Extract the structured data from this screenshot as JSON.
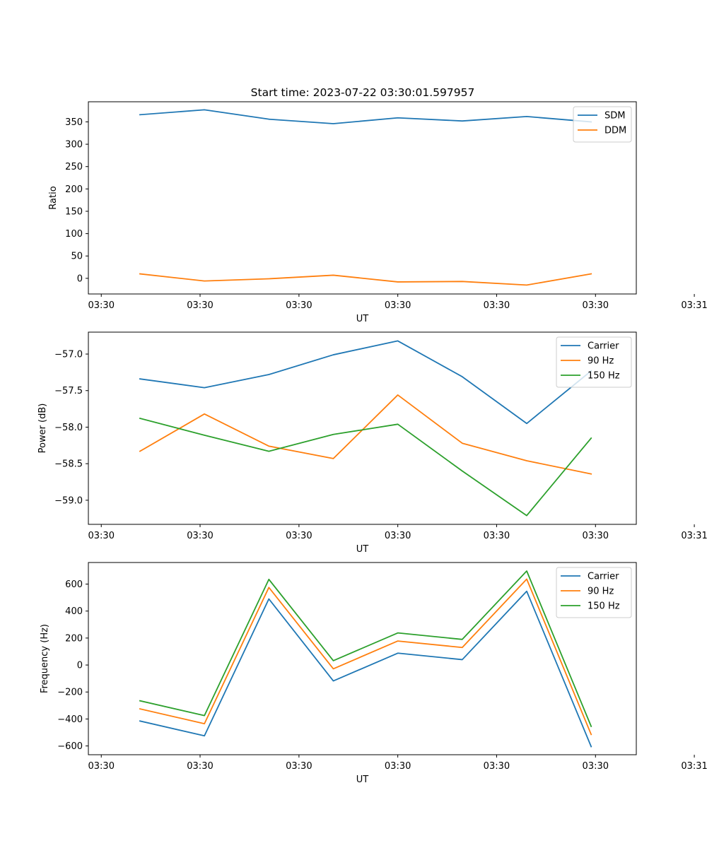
{
  "figure_title": "Start time: 2023-07-22 03:30:01.597957",
  "chart_data": [
    {
      "type": "line",
      "title": "Start time: 2023-07-22 03:30:01.597957",
      "xlabel": "UT",
      "ylabel": "Ratio",
      "x": [
        1,
        2,
        3,
        4,
        5,
        6,
        7,
        8
      ],
      "xlim": [
        0.2,
        8.7
      ],
      "xticks": [
        0.4,
        1.933,
        3.467,
        5.0,
        6.533,
        8.067,
        9.6
      ],
      "xtick_labels": [
        "03:30",
        "03:30",
        "03:30",
        "03:30",
        "03:30",
        "03:30",
        "03:31"
      ],
      "ylim": [
        -35,
        395
      ],
      "yticks": [
        0,
        50,
        100,
        150,
        200,
        250,
        300,
        350
      ],
      "ytick_labels": [
        "0",
        "50",
        "100",
        "150",
        "200",
        "250",
        "300",
        "350"
      ],
      "legend_position": "top-right",
      "grid": false,
      "series": [
        {
          "name": "SDM",
          "color": "#1f77b4",
          "values": [
            366,
            377,
            356,
            346,
            359,
            352,
            362,
            350
          ]
        },
        {
          "name": "DDM",
          "color": "#ff7f0e",
          "values": [
            10,
            -6,
            -1,
            7,
            -8,
            -7,
            -15,
            10
          ]
        }
      ]
    },
    {
      "type": "line",
      "title": "",
      "xlabel": "UT",
      "ylabel": "Power (dB)",
      "x": [
        1,
        2,
        3,
        4,
        5,
        6,
        7,
        8
      ],
      "xlim": [
        0.2,
        8.7
      ],
      "xticks": [
        0.4,
        1.933,
        3.467,
        5.0,
        6.533,
        8.067,
        9.6
      ],
      "xtick_labels": [
        "03:30",
        "03:30",
        "03:30",
        "03:30",
        "03:30",
        "03:30",
        "03:31"
      ],
      "ylim": [
        -59.33,
        -56.7
      ],
      "yticks": [
        -59.0,
        -58.5,
        -58.0,
        -57.5,
        -57.0
      ],
      "ytick_labels": [
        "−59.0",
        "−58.5",
        "−58.0",
        "−57.5",
        "−57.0"
      ],
      "legend_position": "top-right",
      "grid": false,
      "series": [
        {
          "name": "Carrier",
          "color": "#1f77b4",
          "values": [
            -57.34,
            -57.46,
            -57.28,
            -57.01,
            -56.82,
            -57.31,
            -57.95,
            -57.23
          ]
        },
        {
          "name": "90 Hz",
          "color": "#ff7f0e",
          "values": [
            -58.33,
            -57.82,
            -58.26,
            -58.43,
            -57.56,
            -58.22,
            -58.46,
            -58.64
          ]
        },
        {
          "name": "150 Hz",
          "color": "#2ca02c",
          "values": [
            -57.88,
            -58.11,
            -58.33,
            -58.1,
            -57.96,
            -58.6,
            -59.21,
            -58.15
          ]
        }
      ]
    },
    {
      "type": "line",
      "title": "",
      "xlabel": "UT",
      "ylabel": "Frequency (Hz)",
      "x": [
        1,
        2,
        3,
        4,
        5,
        6,
        7,
        8
      ],
      "xlim": [
        0.2,
        8.7
      ],
      "xticks": [
        0.4,
        1.933,
        3.467,
        5.0,
        6.533,
        8.067,
        9.6
      ],
      "xtick_labels": [
        "03:30",
        "03:30",
        "03:30",
        "03:30",
        "03:30",
        "03:30",
        "03:31"
      ],
      "ylim": [
        -665,
        760
      ],
      "yticks": [
        -600,
        -400,
        -200,
        0,
        200,
        400,
        600
      ],
      "ytick_labels": [
        "−600",
        "−400",
        "−200",
        "0",
        "200",
        "400",
        "600"
      ],
      "legend_position": "top-right",
      "grid": false,
      "series": [
        {
          "name": "Carrier",
          "color": "#1f77b4",
          "values": [
            -415,
            -525,
            490,
            -118,
            88,
            40,
            547,
            -605
          ]
        },
        {
          "name": "90 Hz",
          "color": "#ff7f0e",
          "values": [
            -325,
            -435,
            575,
            -28,
            178,
            130,
            637,
            -515
          ]
        },
        {
          "name": "150 Hz",
          "color": "#2ca02c",
          "values": [
            -265,
            -375,
            635,
            32,
            238,
            190,
            697,
            -455
          ]
        }
      ]
    }
  ]
}
